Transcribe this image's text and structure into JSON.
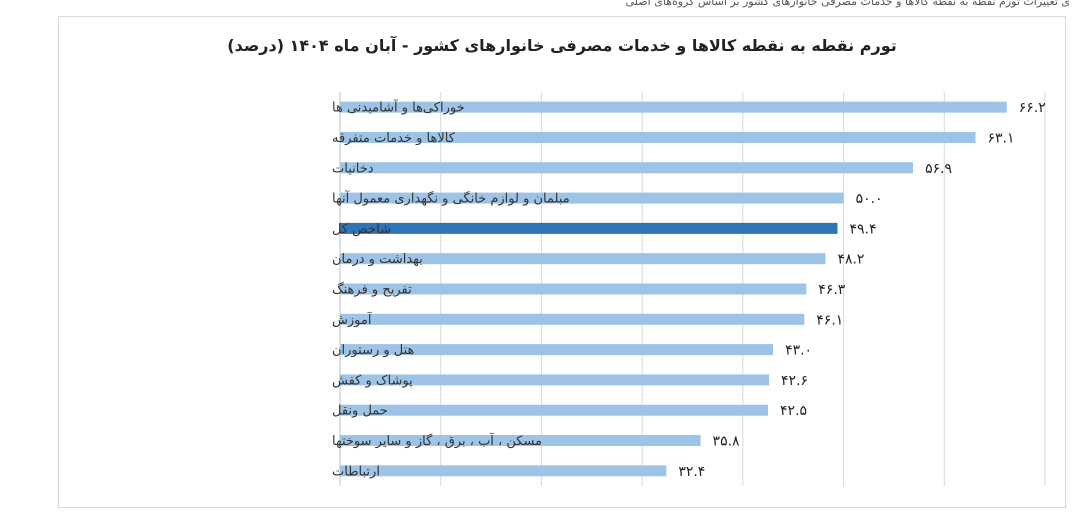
{
  "top_strip_text": "ی تغییرات تورم نقطه به نقطه کالاها و خدمات مصرفی خانوارهای کشور بر اساس گروه‌های اصلی",
  "chart_data": {
    "type": "bar",
    "orientation": "horizontal",
    "title": "تورم نقطه به نقطه کالاها و خدمات مصرفی خانوارهای کشور - آبان ماه ۱۴۰۴ (درصد)",
    "xlabel": "",
    "ylabel": "",
    "xlim": [
      0,
      70
    ],
    "grid": true,
    "legend": "none",
    "categories": [
      "خوراکی‌ها و آشامیدنی ها",
      "کالاها و خدمات متفرقه",
      "دخانیات",
      "مبلمان و لوازم خانگی و نگهداری معمول آنها",
      "شاخص کل",
      "بهداشت و درمان",
      "تفریح و فرهنگ",
      "آموزش",
      "هتل و رستوران",
      "پوشاک و کفش",
      "حمل ونقل",
      "مسکن ، آب ، برق ، گاز و سایر سوختها",
      "ارتباطات"
    ],
    "values": [
      66.2,
      63.1,
      56.9,
      50.0,
      49.4,
      48.2,
      46.3,
      46.1,
      43.0,
      42.6,
      42.5,
      35.8,
      32.4
    ],
    "value_labels": [
      "۶۶.۲",
      "۶۳.۱",
      "۵۶.۹",
      "۵۰.۰",
      "۴۹.۴",
      "۴۸.۲",
      "۴۶.۳",
      "۴۶.۱",
      "۴۳.۰",
      "۴۲.۶",
      "۴۲.۵",
      "۳۵.۸",
      "۳۲.۴"
    ],
    "highlight_category": "شاخص کل",
    "colors": {
      "bar": "#9dc3e6",
      "highlight": "#2e75b6",
      "grid": "#d9d9d9",
      "axis": "#bfbfbf"
    }
  }
}
